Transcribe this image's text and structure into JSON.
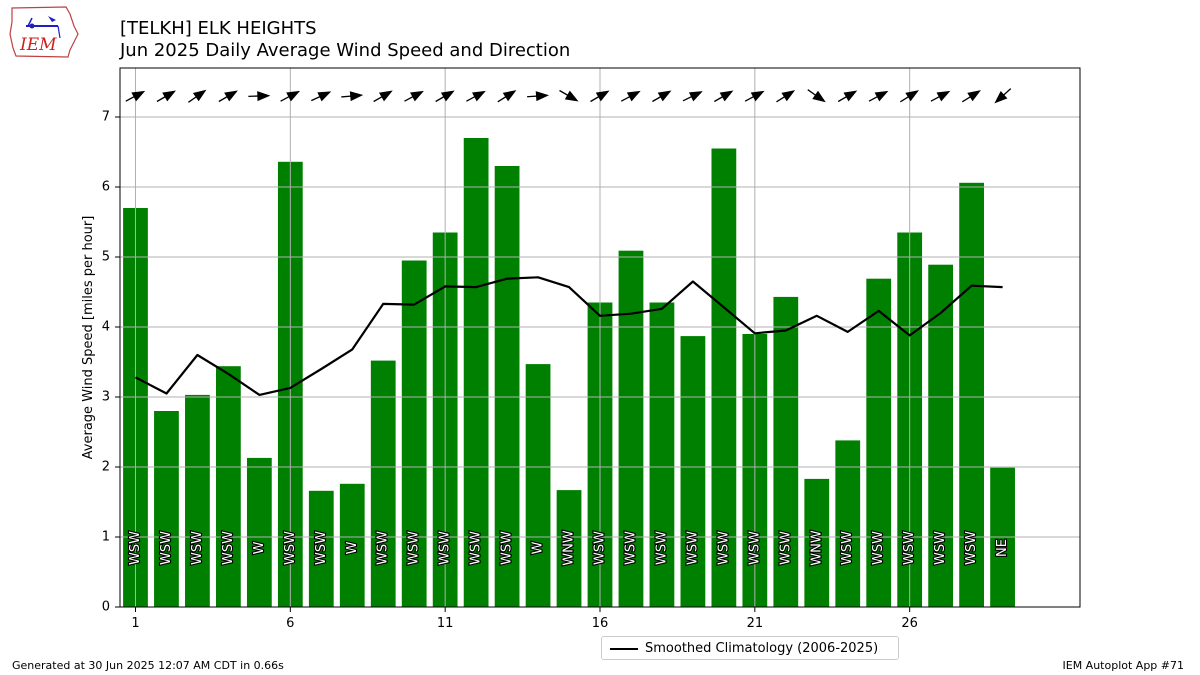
{
  "header": {
    "title": "[TELKH] ELK HEIGHTS",
    "subtitle": "Jun 2025 Daily Average Wind Speed and Direction"
  },
  "logo": {
    "text": "IEM",
    "icon": "iem-iowa-logo"
  },
  "footer": {
    "left": "Generated at 30 Jun 2025 12:07 AM CDT in 0.66s",
    "right": "IEM Autoplot App #71"
  },
  "colors": {
    "bar": "#008000",
    "line": "#000000",
    "grid": "#b0b0b0",
    "arrow": "#000000"
  },
  "chart_data": {
    "type": "bar",
    "ylabel": "Average Wind Speed [miles per hour]",
    "xlabel": "",
    "xlim": [
      0.5,
      31.5
    ],
    "ylim": [
      0,
      7.7
    ],
    "xticks": [
      1,
      6,
      11,
      16,
      21,
      26
    ],
    "yticks": [
      0,
      1,
      2,
      3,
      4,
      5,
      6,
      7
    ],
    "grid": true,
    "legend_position": "below",
    "days": [
      1,
      2,
      3,
      4,
      5,
      6,
      7,
      8,
      9,
      10,
      11,
      12,
      13,
      14,
      15,
      16,
      17,
      18,
      19,
      20,
      21,
      22,
      23,
      24,
      25,
      26,
      27,
      28,
      29
    ],
    "series": [
      {
        "name": "Average Wind Speed",
        "values": [
          5.7,
          2.8,
          3.03,
          3.44,
          2.13,
          6.36,
          1.66,
          1.76,
          3.52,
          4.95,
          5.35,
          6.7,
          6.3,
          3.47,
          1.67,
          4.35,
          5.09,
          4.35,
          3.87,
          6.55,
          3.9,
          4.43,
          1.83,
          2.38,
          4.69,
          5.35,
          4.89,
          6.06,
          1.99
        ]
      },
      {
        "name": "Smoothed Climatology (2006-2025)",
        "values": [
          3.28,
          3.05,
          3.6,
          3.33,
          3.03,
          3.13,
          3.4,
          3.68,
          4.33,
          4.32,
          4.58,
          4.57,
          4.69,
          4.71,
          4.57,
          4.16,
          4.19,
          4.26,
          4.65,
          4.28,
          3.91,
          3.95,
          4.16,
          3.93,
          4.23,
          3.88,
          4.2,
          4.59,
          4.57
        ]
      }
    ],
    "directions": [
      "WSW",
      "WSW",
      "WSW",
      "WSW",
      "W",
      "WSW",
      "WSW",
      "W",
      "WSW",
      "WSW",
      "WSW",
      "WSW",
      "WSW",
      "W",
      "WNW",
      "WSW",
      "WSW",
      "WSW",
      "WSW",
      "WSW",
      "WSW",
      "WSW",
      "WNW",
      "WSW",
      "WSW",
      "WSW",
      "WSW",
      "WSW",
      "NE"
    ],
    "direction_degrees": [
      242,
      240,
      235,
      240,
      268,
      242,
      245,
      265,
      240,
      242,
      240,
      242,
      238,
      266,
      300,
      240,
      242,
      240,
      244,
      240,
      242,
      238,
      305,
      240,
      242,
      238,
      242,
      238,
      48
    ]
  }
}
